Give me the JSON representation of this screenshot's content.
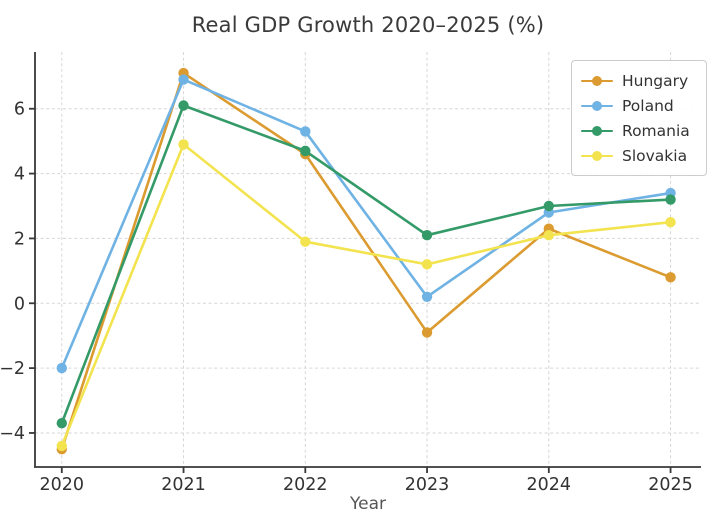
{
  "figure": {
    "title": "Real GDP Growth 2020–2025 (%)"
  },
  "chart_data": {
    "type": "line",
    "title": "Real GDP Growth 2020–2025 (%)",
    "xlabel": "Year",
    "ylabel": "",
    "x": [
      2020,
      2021,
      2022,
      2023,
      2024,
      2025
    ],
    "series": [
      {
        "name": "Hungary",
        "color": "#DB9B30",
        "values": [
          -4.5,
          7.1,
          4.6,
          -0.9,
          2.3,
          0.8
        ]
      },
      {
        "name": "Poland",
        "color": "#6FB2E4",
        "values": [
          -2.0,
          6.9,
          5.3,
          0.2,
          2.8,
          3.4
        ]
      },
      {
        "name": "Romania",
        "color": "#349A68",
        "values": [
          -3.7,
          6.1,
          4.7,
          2.1,
          3.0,
          3.2
        ]
      },
      {
        "name": "Slovakia",
        "color": "#F2E34F",
        "values": [
          -4.4,
          4.9,
          1.9,
          1.2,
          2.1,
          2.5
        ]
      }
    ],
    "yticks": [
      -4,
      -2,
      0,
      2,
      4,
      6
    ],
    "ylim": [
      -5.05,
      7.75
    ],
    "xlim": [
      2019.78,
      2025.25
    ],
    "grid": true,
    "legend_position": "upper right",
    "legend_entries": [
      "Hungary",
      "Poland",
      "Romania",
      "Slovakia"
    ]
  },
  "style_colors": {
    "grid": "#d6d6d6",
    "spine": "#383838",
    "title_text": "#3a3a3a",
    "tick_text": "#333333"
  }
}
